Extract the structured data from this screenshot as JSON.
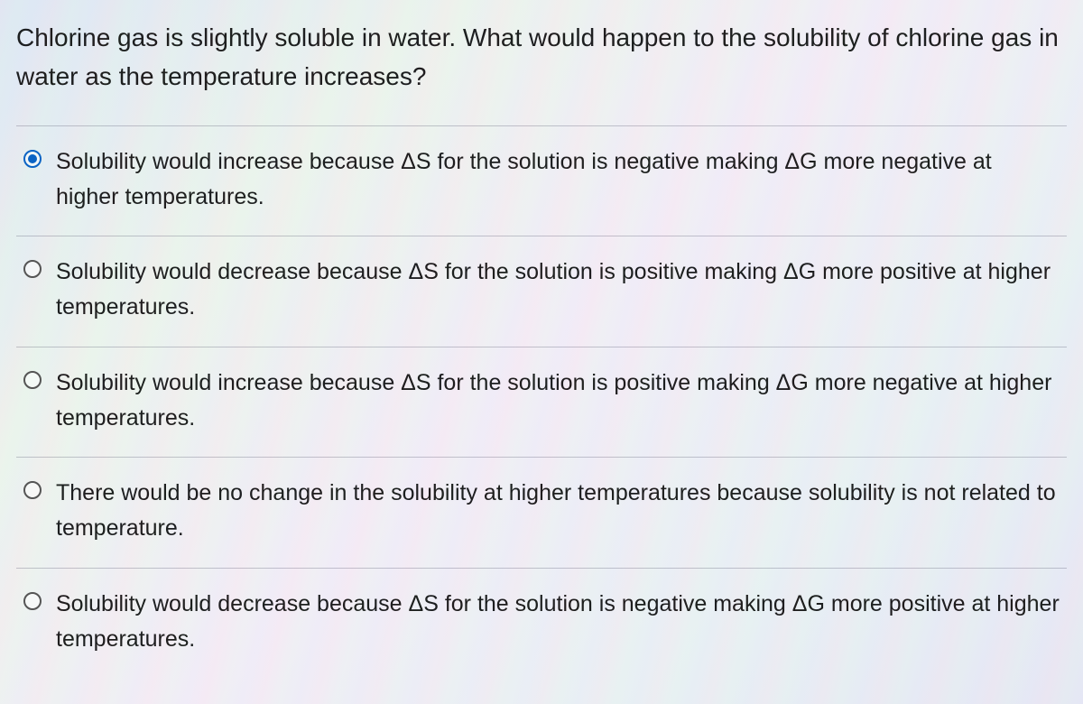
{
  "question": "Chlorine gas is slightly soluble in water. What would happen to the solubility of chlorine gas in water as the temperature increases?",
  "options": [
    {
      "text": "Solubility would increase because ΔS for the solution is negative making ΔG more negative at higher temperatures.",
      "selected": true
    },
    {
      "text": "Solubility would decrease because ΔS for the solution is positive making ΔG more positive at higher temperatures.",
      "selected": false
    },
    {
      "text": "Solubility would increase because ΔS for the solution is positive making ΔG more negative at higher temperatures.",
      "selected": false
    },
    {
      "text": "There would be no change in the solubility at higher temperatures because solubility is not related to temperature.",
      "selected": false
    },
    {
      "text": "Solubility would decrease because ΔS for the solution is negative making ΔG more positive at higher temperatures.",
      "selected": false
    }
  ],
  "styling": {
    "text_color": "#1a1a1a",
    "question_fontsize": 28,
    "option_fontsize": 25,
    "radio_selected_color": "#0b63c4",
    "radio_border_color": "#555555",
    "divider_color": "rgba(100,100,120,0.35)"
  }
}
